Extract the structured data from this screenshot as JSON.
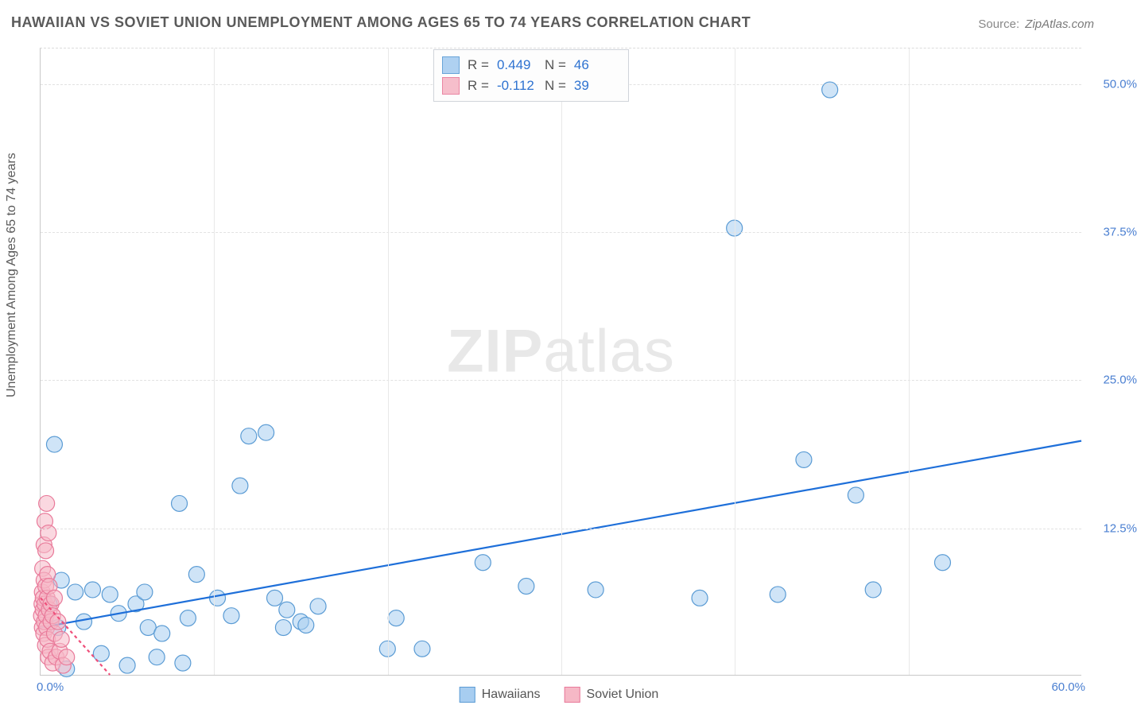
{
  "title": "HAWAIIAN VS SOVIET UNION UNEMPLOYMENT AMONG AGES 65 TO 74 YEARS CORRELATION CHART",
  "source_label": "Source:",
  "source_value": "ZipAtlas.com",
  "ylabel": "Unemployment Among Ages 65 to 74 years",
  "watermark_bold": "ZIP",
  "watermark_light": "atlas",
  "chart": {
    "type": "scatter-correlation",
    "background_color": "#ffffff",
    "grid_color": "#e2e2e2",
    "axis_color": "#c8c8c8",
    "text_color": "#5a5a5a",
    "tick_color": "#4a7fd1",
    "title_fontsize": 18,
    "label_fontsize": 16,
    "tick_fontsize": 15,
    "marker_radius": 10,
    "marker_stroke_width": 1.2,
    "trendline_width": 2.2,
    "xlim": [
      0,
      60
    ],
    "ylim": [
      0,
      53
    ],
    "x_ticks_labeled": [
      {
        "v": 0,
        "label": "0.0%"
      },
      {
        "v": 60,
        "label": "60.0%"
      }
    ],
    "x_gridlines": [
      10,
      20,
      30,
      40,
      50
    ],
    "y_ticks": [
      {
        "v": 12.5,
        "label": "12.5%"
      },
      {
        "v": 25.0,
        "label": "25.0%"
      },
      {
        "v": 37.5,
        "label": "37.5%"
      },
      {
        "v": 50.0,
        "label": "50.0%"
      }
    ],
    "series": [
      {
        "name": "Hawaiians",
        "fill_color": "#a7cdf0",
        "stroke_color": "#5a9bd4",
        "fill_opacity": 0.55,
        "legend_r": "0.449",
        "legend_n": "46",
        "legend_value_color": "#2f73d1",
        "trendline": {
          "x1": 0,
          "y1": 4.0,
          "x2": 60,
          "y2": 19.8,
          "color": "#1e6fd9",
          "dash": "none"
        },
        "points": [
          [
            0.5,
            6.0
          ],
          [
            0.8,
            19.5
          ],
          [
            1.0,
            4.0
          ],
          [
            1.2,
            8.0
          ],
          [
            1.5,
            0.5
          ],
          [
            2.0,
            7.0
          ],
          [
            2.5,
            4.5
          ],
          [
            3.0,
            7.2
          ],
          [
            3.5,
            1.8
          ],
          [
            4.0,
            6.8
          ],
          [
            4.5,
            5.2
          ],
          [
            5.0,
            0.8
          ],
          [
            5.5,
            6.0
          ],
          [
            6.0,
            7.0
          ],
          [
            6.2,
            4.0
          ],
          [
            6.7,
            1.5
          ],
          [
            7.0,
            3.5
          ],
          [
            8.0,
            14.5
          ],
          [
            8.2,
            1.0
          ],
          [
            8.5,
            4.8
          ],
          [
            9.0,
            8.5
          ],
          [
            10.2,
            6.5
          ],
          [
            11.0,
            5.0
          ],
          [
            11.5,
            16.0
          ],
          [
            12.0,
            20.2
          ],
          [
            13.0,
            20.5
          ],
          [
            13.5,
            6.5
          ],
          [
            14.0,
            4.0
          ],
          [
            14.2,
            5.5
          ],
          [
            15.0,
            4.5
          ],
          [
            15.3,
            4.2
          ],
          [
            16.0,
            5.8
          ],
          [
            20.0,
            2.2
          ],
          [
            20.5,
            4.8
          ],
          [
            22.0,
            2.2
          ],
          [
            25.5,
            9.5
          ],
          [
            28.0,
            7.5
          ],
          [
            32.0,
            7.2
          ],
          [
            38.0,
            6.5
          ],
          [
            40.0,
            37.8
          ],
          [
            42.5,
            6.8
          ],
          [
            44.0,
            18.2
          ],
          [
            45.5,
            49.5
          ],
          [
            47.0,
            15.2
          ],
          [
            48.0,
            7.2
          ],
          [
            52.0,
            9.5
          ]
        ]
      },
      {
        "name": "Soviet Union",
        "fill_color": "#f6b8c6",
        "stroke_color": "#e97a9a",
        "fill_opacity": 0.55,
        "legend_r": "-0.112",
        "legend_n": "39",
        "legend_value_color": "#2f73d1",
        "trendline": {
          "x1": 0,
          "y1": 6.5,
          "x2": 4,
          "y2": 0,
          "color": "#ef4f7a",
          "dash": "4,4"
        },
        "points": [
          [
            0.05,
            5.0
          ],
          [
            0.08,
            6.0
          ],
          [
            0.1,
            7.0
          ],
          [
            0.1,
            4.0
          ],
          [
            0.12,
            9.0
          ],
          [
            0.15,
            5.5
          ],
          [
            0.15,
            6.5
          ],
          [
            0.18,
            3.5
          ],
          [
            0.2,
            8.0
          ],
          [
            0.2,
            11.0
          ],
          [
            0.22,
            4.5
          ],
          [
            0.25,
            13.0
          ],
          [
            0.25,
            6.0
          ],
          [
            0.28,
            2.5
          ],
          [
            0.3,
            10.5
          ],
          [
            0.3,
            7.5
          ],
          [
            0.32,
            5.0
          ],
          [
            0.35,
            14.5
          ],
          [
            0.35,
            4.0
          ],
          [
            0.38,
            6.5
          ],
          [
            0.4,
            8.5
          ],
          [
            0.4,
            3.0
          ],
          [
            0.45,
            12.0
          ],
          [
            0.45,
            1.5
          ],
          [
            0.5,
            5.5
          ],
          [
            0.5,
            7.5
          ],
          [
            0.55,
            2.0
          ],
          [
            0.6,
            6.0
          ],
          [
            0.6,
            4.5
          ],
          [
            0.7,
            5.0
          ],
          [
            0.7,
            1.0
          ],
          [
            0.8,
            3.5
          ],
          [
            0.8,
            6.5
          ],
          [
            0.9,
            1.5
          ],
          [
            1.0,
            4.5
          ],
          [
            1.1,
            2.0
          ],
          [
            1.2,
            3.0
          ],
          [
            1.3,
            0.8
          ],
          [
            1.5,
            1.5
          ]
        ]
      }
    ]
  },
  "legend_bottom": {
    "items": [
      {
        "label": "Hawaiians",
        "fill": "#a7cdf0",
        "stroke": "#5a9bd4"
      },
      {
        "label": "Soviet Union",
        "fill": "#f6b8c6",
        "stroke": "#e97a9a"
      }
    ]
  },
  "legend_top_labels": {
    "r": "R =",
    "n": "N ="
  }
}
